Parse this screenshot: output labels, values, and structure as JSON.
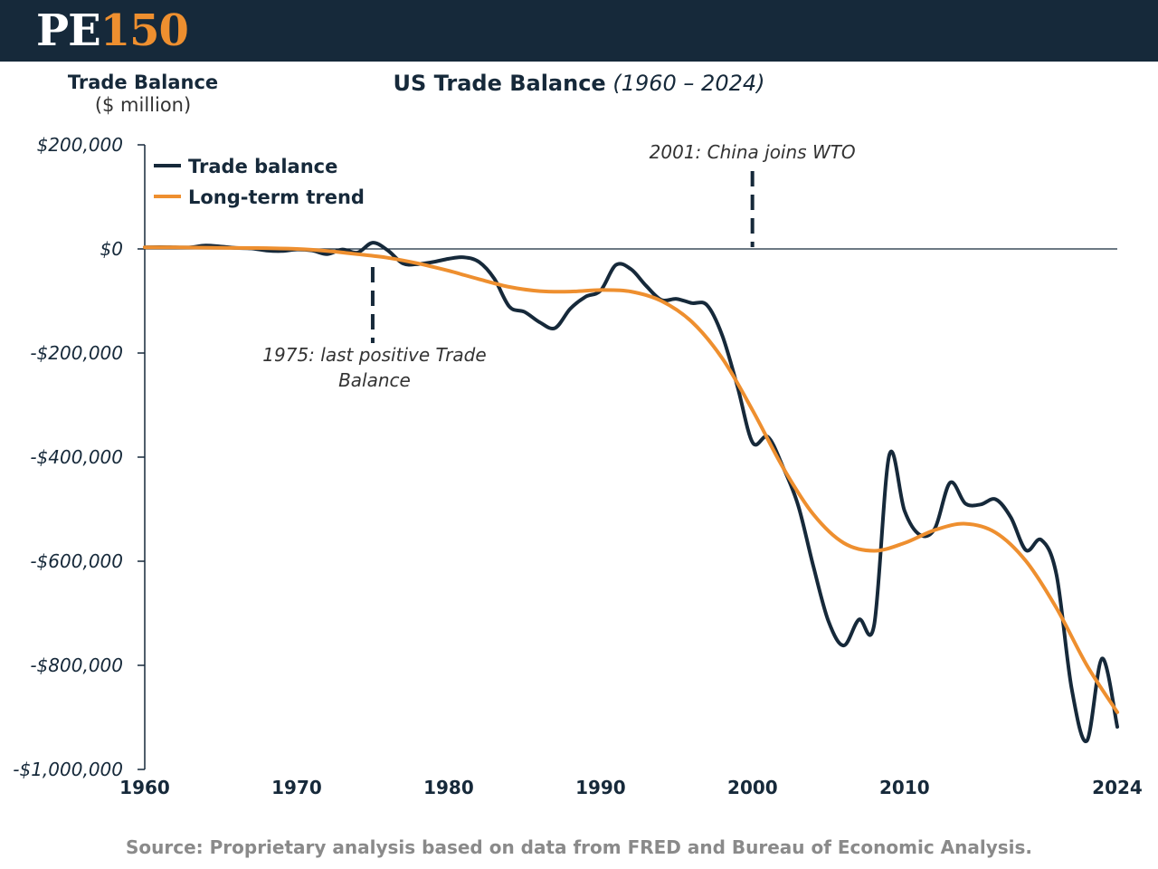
{
  "header": {
    "logo_letters": "PE",
    "logo_number": "150"
  },
  "footer": {
    "source": "Source: Proprietary analysis based on data from FRED and Bureau of Economic Analysis."
  },
  "colors": {
    "header_bg": "#16293a",
    "trade_balance": "#16293a",
    "trend": "#ee8f2f",
    "logo_accent": "#ee8f2f"
  },
  "chart_data": {
    "type": "line",
    "title": "US Trade Balance",
    "subtitle": "(1960 – 2024)",
    "ylabel": "Trade Balance",
    "ylabel_unit": "($ million)",
    "xlabel": "",
    "xlim": [
      1960,
      2024
    ],
    "ylim": [
      -1000000,
      200000
    ],
    "x_ticks": [
      1960,
      1970,
      1980,
      1990,
      2000,
      2010,
      2024
    ],
    "y_ticks": [
      {
        "value": 200000,
        "label": "$200,000"
      },
      {
        "value": 0,
        "label": "$0"
      },
      {
        "value": -200000,
        "label": "-$200,000"
      },
      {
        "value": -400000,
        "label": "-$400,000"
      },
      {
        "value": -600000,
        "label": "-$600,000"
      },
      {
        "value": -800000,
        "label": "-$800,000"
      },
      {
        "value": -1000000,
        "label": "-$1,000,000"
      }
    ],
    "legend_position": "top-left",
    "grid": false,
    "series": [
      {
        "name": "Trade balance",
        "x": [
          1960,
          1961,
          1962,
          1963,
          1964,
          1965,
          1966,
          1967,
          1968,
          1969,
          1970,
          1971,
          1972,
          1973,
          1974,
          1975,
          1976,
          1977,
          1978,
          1979,
          1980,
          1981,
          1982,
          1983,
          1984,
          1985,
          1986,
          1987,
          1988,
          1989,
          1990,
          1991,
          1992,
          1993,
          1994,
          1995,
          1996,
          1997,
          1998,
          1999,
          2000,
          2001,
          2002,
          2003,
          2004,
          2005,
          2006,
          2007,
          2008,
          2009,
          2010,
          2011,
          2012,
          2013,
          2014,
          2015,
          2016,
          2017,
          2018,
          2019,
          2020,
          2021,
          2022,
          2023,
          2024
        ],
        "values": [
          3000,
          3500,
          3000,
          3200,
          6500,
          4500,
          2000,
          1000,
          -3000,
          -4000,
          -1000,
          -3000,
          -10000,
          -1000,
          -7000,
          12000,
          -3000,
          -28000,
          -29000,
          -25000,
          -19000,
          -16000,
          -25000,
          -57000,
          -111000,
          -121000,
          -141000,
          -152000,
          -115000,
          -92000,
          -80000,
          -31000,
          -39000,
          -71000,
          -98000,
          -96000,
          -104000,
          -108000,
          -166000,
          -264000,
          -372000,
          -361000,
          -419000,
          -493000,
          -610000,
          -716000,
          -762000,
          -712000,
          -722000,
          -396000,
          -503000,
          -549000,
          -537000,
          -449000,
          -489000,
          -491000,
          -481000,
          -516000,
          -579000,
          -559000,
          -626000,
          -845000,
          -945000,
          -787000,
          -918000
        ],
        "color": "#16293a"
      },
      {
        "name": "Long-term trend",
        "x": [
          1960,
          1962,
          1964,
          1966,
          1968,
          1970,
          1972,
          1974,
          1976,
          1978,
          1980,
          1982,
          1984,
          1986,
          1988,
          1990,
          1992,
          1994,
          1996,
          1998,
          2000,
          2002,
          2004,
          2006,
          2008,
          2010,
          2012,
          2014,
          2016,
          2018,
          2020,
          2022,
          2024
        ],
        "values": [
          3000,
          3000,
          2500,
          2000,
          1500,
          0,
          -4000,
          -10000,
          -17000,
          -28000,
          -42000,
          -58000,
          -73000,
          -81000,
          -82000,
          -79000,
          -82000,
          -100000,
          -140000,
          -210000,
          -310000,
          -420000,
          -510000,
          -565000,
          -580000,
          -565000,
          -540000,
          -528000,
          -545000,
          -600000,
          -690000,
          -800000,
          -890000
        ],
        "color": "#ee8f2f"
      }
    ],
    "annotations": [
      {
        "x": 1975,
        "line1": "1975: last positive Trade",
        "line2": "Balance"
      },
      {
        "x": 2001,
        "line1": "2001: China joins WTO"
      }
    ]
  }
}
